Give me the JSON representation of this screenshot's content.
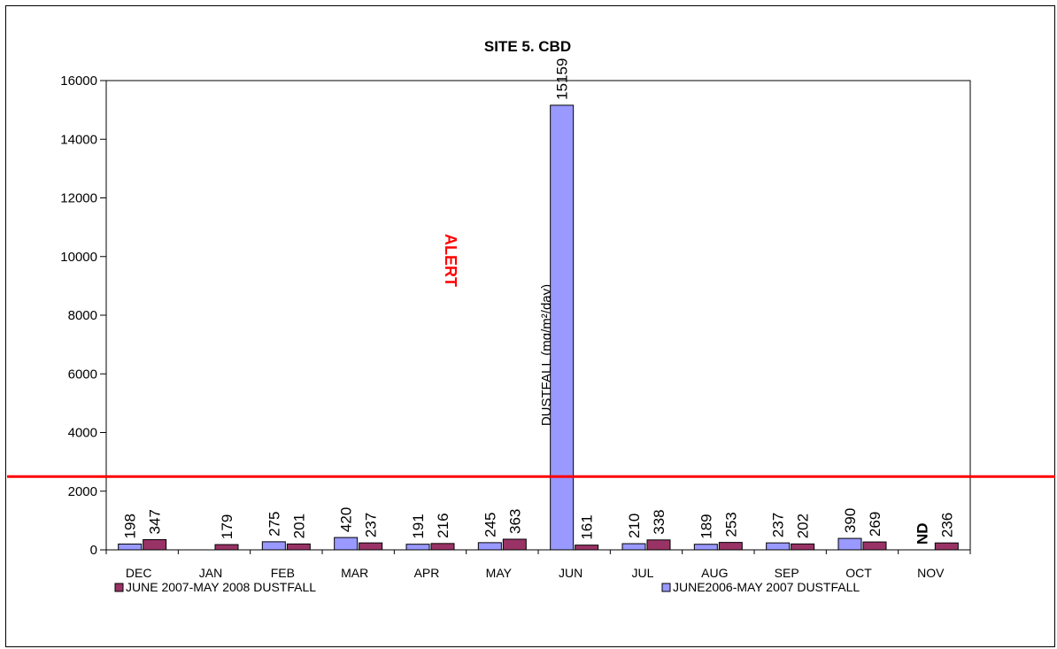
{
  "chart_data": {
    "type": "bar",
    "title": "SITE 5. CBD",
    "ylabel": "DUSTFALL (mg/m²/day)",
    "ylim": [
      0,
      16000
    ],
    "yticks": [
      0,
      2000,
      4000,
      6000,
      8000,
      10000,
      12000,
      14000,
      16000
    ],
    "categories": [
      "DEC",
      "JAN",
      "FEB",
      "MAR",
      "APR",
      "MAY",
      "JUN",
      "JUL",
      "AUG",
      "SEP",
      "OCT",
      "NOV"
    ],
    "series": [
      {
        "name": "JUNE2006-MAY 2007 DUSTFALL",
        "color": "#9999ff",
        "values": [
          198,
          null,
          275,
          420,
          191,
          245,
          15159,
          210,
          189,
          237,
          390,
          null
        ],
        "labels": [
          "198",
          "",
          "275",
          "420",
          "191",
          "245",
          "15159",
          "210",
          "189",
          "237",
          "390",
          "ND"
        ]
      },
      {
        "name": "JUNE 2007-MAY 2008 DUSTFALL",
        "color": "#993366",
        "values": [
          347,
          179,
          201,
          237,
          216,
          363,
          161,
          338,
          253,
          202,
          269,
          236
        ],
        "labels": [
          "347",
          "179",
          "201",
          "237",
          "216",
          "363",
          "161",
          "338",
          "253",
          "202",
          "269",
          "236"
        ]
      }
    ],
    "alert_line": {
      "value": 2500,
      "label": "ALERT",
      "color": "#ff0000"
    },
    "legend_placement": "bottom",
    "grid": false
  }
}
